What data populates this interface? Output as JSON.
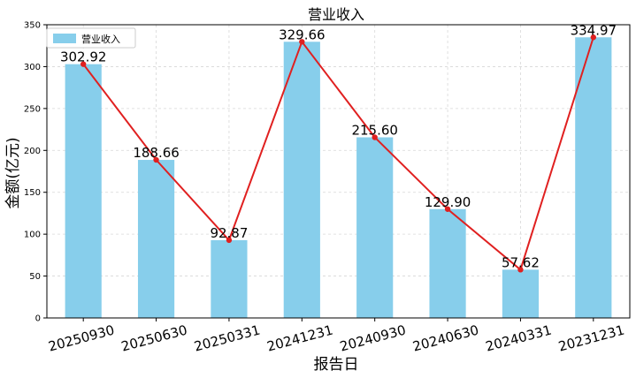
{
  "chart_data": {
    "type": "bar",
    "title": "营业收入",
    "xlabel": "报告日",
    "ylabel": "金额(亿元)",
    "categories": [
      "20250930",
      "20250630",
      "20250331",
      "20241231",
      "20240930",
      "20240630",
      "20240331",
      "20231231"
    ],
    "series": [
      {
        "name": "营业收入",
        "type": "bar",
        "values": [
          302.92,
          188.66,
          92.87,
          329.66,
          215.6,
          129.9,
          57.62,
          334.97
        ],
        "color": "#87CEEB"
      },
      {
        "type": "line",
        "values": [
          302.92,
          188.66,
          92.87,
          329.66,
          215.6,
          129.9,
          57.62,
          334.97
        ],
        "color": "#E02020"
      }
    ],
    "value_labels": [
      "302.92",
      "188.66",
      "92.87",
      "329.66",
      "215.60",
      "129.90",
      "57.62",
      "334.97"
    ],
    "yticks": [
      0,
      50,
      100,
      150,
      200,
      250,
      300,
      350
    ],
    "ylim": [
      0,
      350
    ],
    "grid": true,
    "legend": "top-left"
  }
}
